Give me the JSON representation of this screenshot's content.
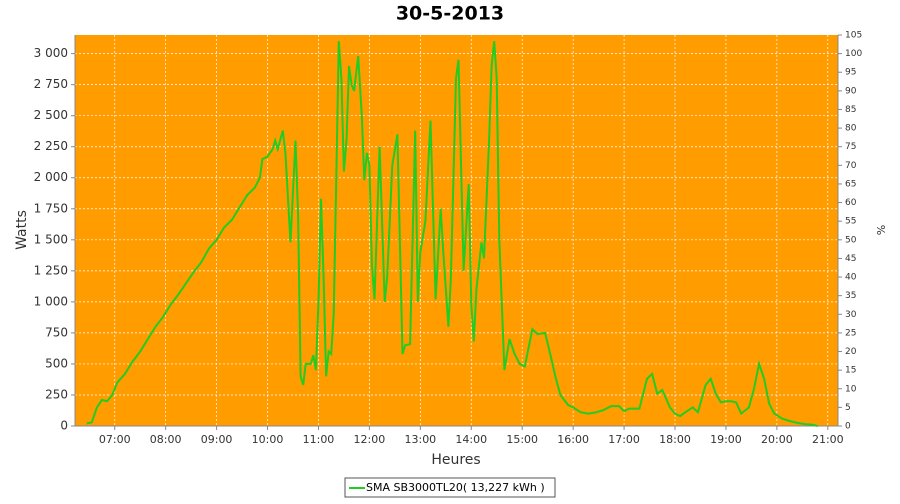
{
  "chart_data": {
    "type": "line",
    "title": "30-5-2013",
    "x_label": "Heures",
    "y_label": "Watts",
    "y2_label": "%",
    "background": "#ff9c00",
    "grid": true,
    "xlim": [
      6.22,
      21.2
    ],
    "xticks": [
      {
        "value": 7,
        "label": "07:00"
      },
      {
        "value": 8,
        "label": "08:00"
      },
      {
        "value": 9,
        "label": "09:00"
      },
      {
        "value": 10,
        "label": "10:00"
      },
      {
        "value": 11,
        "label": "11:00"
      },
      {
        "value": 12,
        "label": "12:00"
      },
      {
        "value": 13,
        "label": "13:00"
      },
      {
        "value": 14,
        "label": "14:00"
      },
      {
        "value": 15,
        "label": "15:00"
      },
      {
        "value": 16,
        "label": "16:00"
      },
      {
        "value": 17,
        "label": "17:00"
      },
      {
        "value": 18,
        "label": "18:00"
      },
      {
        "value": 19,
        "label": "19:00"
      },
      {
        "value": 20,
        "label": "20:00"
      },
      {
        "value": 21,
        "label": "21:00"
      }
    ],
    "ylim": [
      0,
      3150
    ],
    "yticks": [
      0,
      250,
      500,
      750,
      {
        "value": 1000,
        "label": "1 000"
      },
      {
        "value": 1250,
        "label": "1 250"
      },
      {
        "value": 1500,
        "label": "1 500"
      },
      {
        "value": 1750,
        "label": "1 750"
      },
      {
        "value": 2000,
        "label": "2 000"
      },
      {
        "value": 2250,
        "label": "2 250"
      },
      {
        "value": 2500,
        "label": "2 500"
      },
      {
        "value": 2750,
        "label": "2 750"
      },
      {
        "value": 3000,
        "label": "3 000"
      }
    ],
    "y2lim": [
      0,
      105
    ],
    "y2ticks": [
      0,
      5,
      10,
      15,
      20,
      25,
      30,
      35,
      40,
      45,
      50,
      55,
      60,
      65,
      70,
      75,
      80,
      85,
      90,
      95,
      100,
      105
    ],
    "x": [
      6.45,
      6.55,
      6.65,
      6.75,
      6.85,
      6.95,
      7.05,
      7.2,
      7.35,
      7.5,
      7.65,
      7.8,
      7.95,
      8.1,
      8.25,
      8.4,
      8.55,
      8.7,
      8.85,
      9.0,
      9.15,
      9.3,
      9.45,
      9.6,
      9.75,
      9.85,
      9.9,
      10.0,
      10.1,
      10.15,
      10.2,
      10.3,
      10.35,
      10.45,
      10.55,
      10.6,
      10.65,
      10.7,
      10.75,
      10.85,
      10.9,
      10.95,
      11.0,
      11.05,
      11.1,
      11.15,
      11.2,
      11.25,
      11.3,
      11.35,
      11.4,
      11.45,
      11.5,
      11.55,
      11.6,
      11.65,
      11.7,
      11.78,
      11.85,
      11.9,
      11.95,
      12.0,
      12.05,
      12.1,
      12.2,
      12.3,
      12.35,
      12.45,
      12.55,
      12.65,
      12.7,
      12.8,
      12.9,
      12.95,
      13.0,
      13.1,
      13.2,
      13.3,
      13.4,
      13.45,
      13.55,
      13.6,
      13.7,
      13.75,
      13.85,
      13.95,
      14.0,
      14.05,
      14.1,
      14.2,
      14.25,
      14.35,
      14.4,
      14.45,
      14.5,
      14.55,
      14.65,
      14.75,
      14.85,
      14.95,
      15.05,
      15.2,
      15.3,
      15.45,
      15.55,
      15.65,
      15.75,
      15.9,
      16.0,
      16.15,
      16.3,
      16.45,
      16.6,
      16.75,
      16.9,
      17.0,
      17.1,
      17.3,
      17.45,
      17.55,
      17.65,
      17.75,
      17.9,
      18.0,
      18.1,
      18.2,
      18.35,
      18.45,
      18.6,
      18.7,
      18.8,
      18.9,
      19.0,
      19.1,
      19.2,
      19.3,
      19.45,
      19.55,
      19.65,
      19.75,
      19.85,
      19.95,
      20.1,
      20.25,
      20.4,
      20.55,
      20.7,
      20.8
    ],
    "series": [
      {
        "name": "SMA SB3000TL20( 13,227 kWh )",
        "color": "#22cc22",
        "values": [
          20,
          30,
          150,
          210,
          200,
          250,
          350,
          420,
          520,
          600,
          700,
          800,
          880,
          980,
          1060,
          1150,
          1240,
          1320,
          1430,
          1500,
          1600,
          1660,
          1760,
          1860,
          1920,
          2000,
          2150,
          2170,
          2230,
          2300,
          2230,
          2380,
          2200,
          1480,
          2300,
          1700,
          400,
          330,
          500,
          500,
          570,
          450,
          1000,
          1830,
          1200,
          400,
          600,
          580,
          900,
          2000,
          3100,
          2800,
          2050,
          2300,
          2900,
          2750,
          2700,
          2980,
          2500,
          1980,
          2200,
          2100,
          1300,
          1020,
          2250,
          1000,
          1200,
          2100,
          2350,
          580,
          650,
          660,
          2380,
          1000,
          1400,
          1650,
          2460,
          1020,
          1750,
          1400,
          800,
          1200,
          2800,
          2950,
          1250,
          1950,
          980,
          680,
          1100,
          1480,
          1350,
          2300,
          2900,
          3100,
          2800,
          1500,
          450,
          700,
          580,
          500,
          480,
          780,
          740,
          750,
          580,
          400,
          250,
          170,
          150,
          110,
          100,
          110,
          130,
          160,
          160,
          120,
          140,
          140,
          380,
          420,
          260,
          290,
          150,
          100,
          80,
          110,
          150,
          110,
          330,
          380,
          260,
          190,
          200,
          200,
          190,
          100,
          150,
          300,
          500,
          380,
          180,
          100,
          60,
          40,
          25,
          15,
          10,
          0
        ]
      }
    ]
  }
}
